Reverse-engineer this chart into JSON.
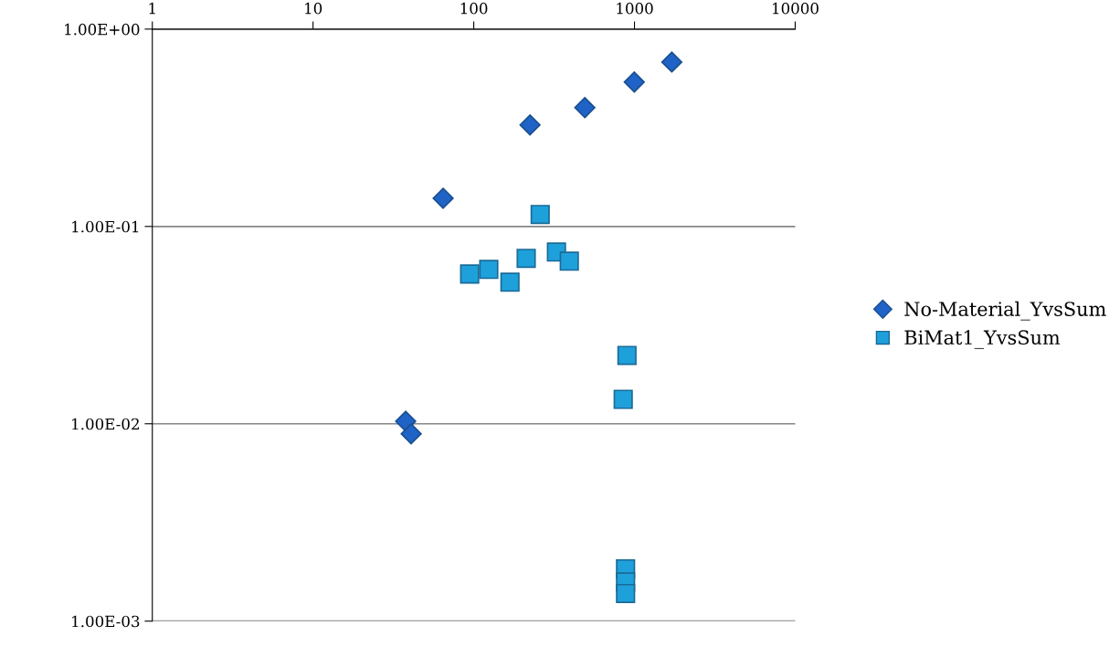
{
  "chart_data": {
    "type": "scatter",
    "log": "xy",
    "grid": "y",
    "legend": "right",
    "xlim": [
      1,
      10000
    ],
    "xticks": [
      1,
      10,
      100,
      1000,
      10000
    ],
    "ylim": [
      0.001,
      1
    ],
    "yticks": [
      {
        "value": 0.001,
        "label": "1.00E-03"
      },
      {
        "value": 0.01,
        "label": "1.00E-02"
      },
      {
        "value": 0.1,
        "label": "1.00E-01"
      },
      {
        "value": 1,
        "label": "1.00E+00"
      }
    ],
    "series": [
      {
        "name": "No-Material_YvsSum",
        "color": "#1f63c6",
        "marker": "diamond",
        "x": [
          64.5,
          224,
          491,
          997,
          1707,
          37.7,
          40.8
        ],
        "values": [
          0.139,
          0.327,
          0.4,
          0.539,
          0.681,
          0.0103,
          0.0089
        ]
      },
      {
        "name": "BiMat1_YvsSum",
        "color": "#1ea0db",
        "marker": "square",
        "x": [
          259,
          94.3,
          124,
          168,
          212,
          327,
          393,
          898,
          851,
          880,
          880,
          880
        ],
        "values": [
          0.115,
          0.0574,
          0.0606,
          0.0522,
          0.0689,
          0.0742,
          0.0667,
          0.0222,
          0.0133,
          0.00184,
          0.00158,
          0.00138
        ]
      }
    ]
  }
}
